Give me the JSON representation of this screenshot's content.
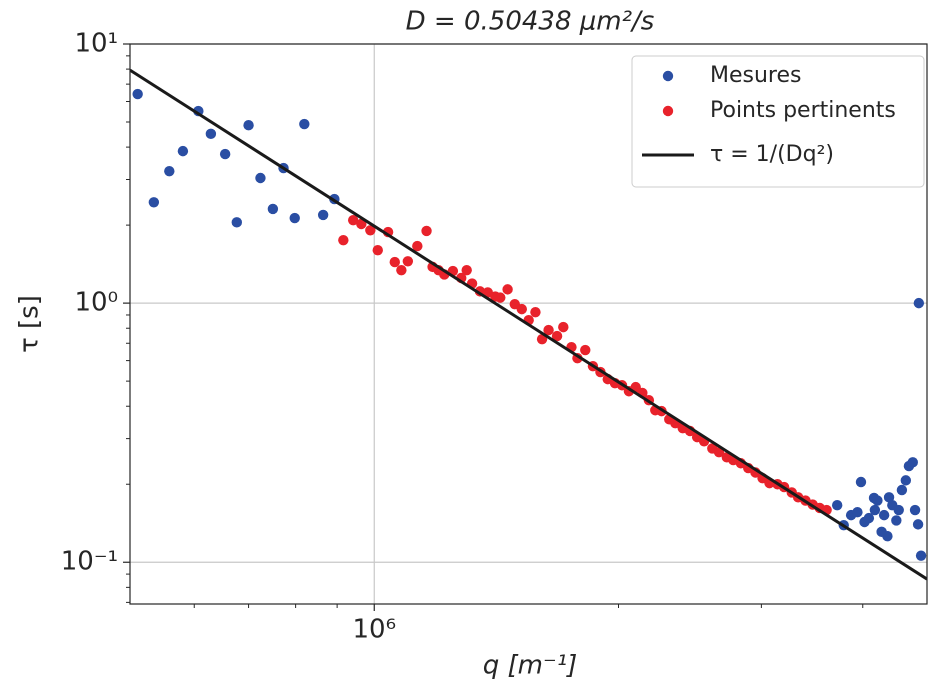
{
  "chart_data": {
    "type": "scatter",
    "title": "D = 0.50438 μm²/s",
    "x_label": "q  [m⁻¹]",
    "y_label": "τ [s]",
    "xscale": "log",
    "yscale": "log",
    "grid": true,
    "legend": "upper right",
    "xlim": [
      500000,
      4800000
    ],
    "ylim": [
      0.069,
      10
    ],
    "xticks": [
      {
        "value": 1000000,
        "label": "10⁶"
      }
    ],
    "yticks": [
      {
        "value": 0.1,
        "label": "10⁻¹"
      },
      {
        "value": 1,
        "label": "10⁰"
      },
      {
        "value": 10,
        "label": "10¹"
      }
    ],
    "xminorticks": [
      600000,
      700000,
      800000,
      900000,
      2000000,
      3000000,
      4000000
    ],
    "yminorticks": [
      0.07,
      0.08,
      0.09,
      0.2,
      0.3,
      0.4,
      0.5,
      0.6,
      0.7,
      0.8,
      0.9,
      2,
      3,
      4,
      5,
      6,
      7,
      8,
      9
    ],
    "series": [
      {
        "name": "Mesures",
        "color": "#2a4ea3",
        "style": "marker",
        "x": [
          511000,
          535000,
          559000,
          581000,
          607000,
          629000,
          655000,
          677000,
          700000,
          724000,
          750000,
          773000,
          798000,
          820000,
          865000,
          893000,
          3720000,
          3790000,
          3870000,
          3940000,
          3980000,
          4020000,
          4070000,
          4130000,
          4140000,
          4170000,
          4220000,
          4250000,
          4290000,
          4310000,
          4350000,
          4400000,
          4430000,
          4470000,
          4520000,
          4560000,
          4610000,
          4640000,
          4680000,
          4690000,
          4720000
        ],
        "values": [
          6.41,
          2.45,
          3.23,
          3.86,
          5.51,
          4.5,
          3.76,
          2.05,
          4.86,
          3.04,
          2.31,
          3.32,
          2.13,
          4.91,
          2.19,
          2.52,
          0.166,
          0.139,
          0.152,
          0.156,
          0.204,
          0.143,
          0.148,
          0.177,
          0.159,
          0.173,
          0.131,
          0.152,
          0.126,
          0.178,
          0.166,
          0.145,
          0.159,
          0.19,
          0.207,
          0.235,
          0.243,
          0.159,
          0.14,
          1.0,
          0.106
        ]
      },
      {
        "name": "Points pertinents",
        "color": "#e8222b",
        "style": "marker",
        "x": [
          916000,
          942000,
          964000,
          989000,
          1010000,
          1040000,
          1060000,
          1080000,
          1100000,
          1130000,
          1160000,
          1180000,
          1200000,
          1220000,
          1250000,
          1280000,
          1300000,
          1320000,
          1350000,
          1380000,
          1410000,
          1430000,
          1460000,
          1490000,
          1520000,
          1550000,
          1580000,
          1610000,
          1640000,
          1680000,
          1710000,
          1750000,
          1780000,
          1820000,
          1860000,
          1900000,
          1940000,
          1980000,
          2020000,
          2060000,
          2100000,
          2140000,
          2180000,
          2220000,
          2260000,
          2310000,
          2350000,
          2400000,
          2450000,
          2500000,
          2550000,
          2610000,
          2660000,
          2720000,
          2770000,
          2830000,
          2890000,
          2950000,
          3010000,
          3070000,
          3140000,
          3200000,
          3270000,
          3330000,
          3400000,
          3470000,
          3540000,
          3610000
        ],
        "values": [
          1.75,
          2.09,
          2.02,
          1.91,
          1.6,
          1.88,
          1.44,
          1.34,
          1.45,
          1.66,
          1.9,
          1.38,
          1.34,
          1.29,
          1.33,
          1.25,
          1.34,
          1.19,
          1.11,
          1.1,
          1.06,
          1.05,
          1.13,
          0.991,
          0.948,
          0.859,
          0.923,
          0.726,
          0.787,
          0.746,
          0.808,
          0.676,
          0.613,
          0.659,
          0.571,
          0.542,
          0.509,
          0.491,
          0.482,
          0.457,
          0.474,
          0.45,
          0.422,
          0.386,
          0.383,
          0.356,
          0.344,
          0.329,
          0.321,
          0.304,
          0.293,
          0.275,
          0.266,
          0.254,
          0.248,
          0.241,
          0.231,
          0.222,
          0.211,
          0.202,
          0.2,
          0.195,
          0.186,
          0.178,
          0.173,
          0.167,
          0.162,
          0.159
        ]
      },
      {
        "name": "τ = 1/(Dq²)",
        "color": "#1a1a1a",
        "style": "line",
        "x": [
          500000,
          4800000
        ],
        "values": [
          7.93,
          0.0861
        ]
      }
    ]
  }
}
